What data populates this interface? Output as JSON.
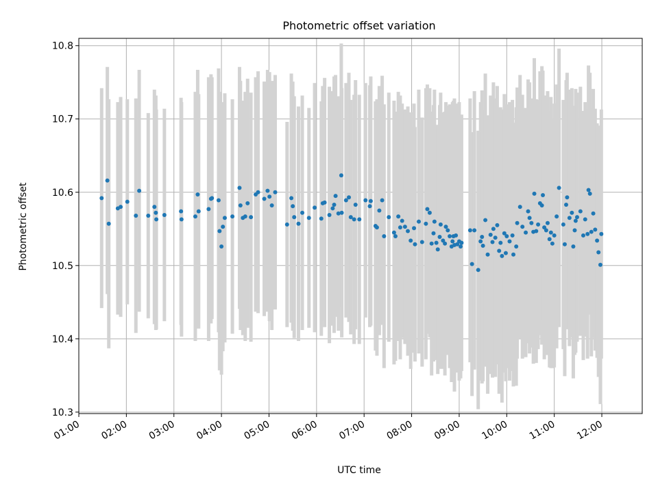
{
  "chart_data": {
    "type": "scatter",
    "title": "Photometric offset variation",
    "xlabel": "UTC time",
    "ylabel": "Photometric offset",
    "xlim": [
      1.0,
      12.85
    ],
    "ylim": [
      10.298,
      10.81
    ],
    "grid": true,
    "x_ticks": [
      {
        "value": 1,
        "label": "01:00"
      },
      {
        "value": 2,
        "label": "02:00"
      },
      {
        "value": 3,
        "label": "03:00"
      },
      {
        "value": 4,
        "label": "04:00"
      },
      {
        "value": 5,
        "label": "05:00"
      },
      {
        "value": 6,
        "label": "06:00"
      },
      {
        "value": 7,
        "label": "07:00"
      },
      {
        "value": 8,
        "label": "08:00"
      },
      {
        "value": 9,
        "label": "09:00"
      },
      {
        "value": 10,
        "label": "10:00"
      },
      {
        "value": 11,
        "label": "11:00"
      },
      {
        "value": 12,
        "label": "12:00"
      }
    ],
    "y_ticks": [
      {
        "value": 10.3,
        "label": "10.3"
      },
      {
        "value": 10.4,
        "label": "10.4"
      },
      {
        "value": 10.5,
        "label": "10.5"
      },
      {
        "value": 10.6,
        "label": "10.6"
      },
      {
        "value": 10.7,
        "label": "10.7"
      },
      {
        "value": 10.8,
        "label": "10.8"
      }
    ],
    "colors": {
      "point": "#1f77b4",
      "errorbar": "#d3d3d3",
      "grid": "#b0b0b0"
    },
    "points": [
      [
        1.48,
        10.592,
        0.15
      ],
      [
        1.6,
        10.616,
        0.155
      ],
      [
        1.63,
        10.557,
        0.17
      ],
      [
        1.82,
        10.578,
        0.145
      ],
      [
        1.88,
        10.58,
        0.15
      ],
      [
        2.02,
        10.587,
        0.14
      ],
      [
        2.2,
        10.568,
        0.16
      ],
      [
        2.27,
        10.602,
        0.165
      ],
      [
        2.46,
        10.568,
        0.14
      ],
      [
        2.59,
        10.58,
        0.16
      ],
      [
        2.62,
        10.572,
        0.16
      ],
      [
        2.63,
        10.563,
        0.15
      ],
      [
        2.8,
        10.569,
        0.145
      ],
      [
        3.15,
        10.574,
        0.155
      ],
      [
        3.16,
        10.563,
        0.16
      ],
      [
        3.45,
        10.567,
        0.17
      ],
      [
        3.5,
        10.597,
        0.17
      ],
      [
        3.52,
        10.574,
        0.16
      ],
      [
        3.73,
        10.577,
        0.18
      ],
      [
        3.78,
        10.591,
        0.17
      ],
      [
        3.8,
        10.592,
        0.165
      ],
      [
        3.94,
        10.589,
        0.18
      ],
      [
        3.96,
        10.547,
        0.19
      ],
      [
        4.0,
        10.526,
        0.175
      ],
      [
        4.03,
        10.553,
        0.17
      ],
      [
        4.07,
        10.565,
        0.17
      ],
      [
        4.23,
        10.567,
        0.16
      ],
      [
        4.38,
        10.606,
        0.165
      ],
      [
        4.4,
        10.582,
        0.17
      ],
      [
        4.45,
        10.565,
        0.16
      ],
      [
        4.5,
        10.567,
        0.17
      ],
      [
        4.55,
        10.585,
        0.17
      ],
      [
        4.62,
        10.566,
        0.17
      ],
      [
        4.72,
        10.597,
        0.16
      ],
      [
        4.77,
        10.6,
        0.165
      ],
      [
        4.9,
        10.591,
        0.16
      ],
      [
        4.97,
        10.602,
        0.165
      ],
      [
        5.01,
        10.594,
        0.17
      ],
      [
        5.06,
        10.582,
        0.17
      ],
      [
        5.13,
        10.6,
        0.16
      ],
      [
        5.38,
        10.556,
        0.14
      ],
      [
        5.47,
        10.592,
        0.17
      ],
      [
        5.5,
        10.581,
        0.17
      ],
      [
        5.53,
        10.566,
        0.165
      ],
      [
        5.62,
        10.557,
        0.16
      ],
      [
        5.7,
        10.572,
        0.16
      ],
      [
        5.84,
        10.565,
        0.15
      ],
      [
        5.96,
        10.579,
        0.17
      ],
      [
        6.1,
        10.564,
        0.16
      ],
      [
        6.13,
        10.585,
        0.16
      ],
      [
        6.17,
        10.586,
        0.17
      ],
      [
        6.27,
        10.569,
        0.175
      ],
      [
        6.34,
        10.578,
        0.16
      ],
      [
        6.37,
        10.583,
        0.175
      ],
      [
        6.4,
        10.595,
        0.165
      ],
      [
        6.46,
        10.571,
        0.16
      ],
      [
        6.52,
        10.623,
        0.18
      ],
      [
        6.53,
        10.572,
        0.17
      ],
      [
        6.62,
        10.589,
        0.16
      ],
      [
        6.68,
        10.593,
        0.17
      ],
      [
        6.72,
        10.566,
        0.16
      ],
      [
        6.79,
        10.563,
        0.17
      ],
      [
        6.82,
        10.583,
        0.17
      ],
      [
        6.9,
        10.563,
        0.17
      ],
      [
        7.03,
        10.589,
        0.16
      ],
      [
        7.12,
        10.581,
        0.165
      ],
      [
        7.14,
        10.588,
        0.17
      ],
      [
        7.24,
        10.554,
        0.17
      ],
      [
        7.27,
        10.552,
        0.175
      ],
      [
        7.32,
        10.575,
        0.17
      ],
      [
        7.38,
        10.589,
        0.17
      ],
      [
        7.42,
        10.54,
        0.18
      ],
      [
        7.52,
        10.566,
        0.17
      ],
      [
        7.63,
        10.545,
        0.18
      ],
      [
        7.66,
        10.54,
        0.17
      ],
      [
        7.72,
        10.567,
        0.17
      ],
      [
        7.76,
        10.552,
        0.18
      ],
      [
        7.8,
        10.561,
        0.16
      ],
      [
        7.86,
        10.553,
        0.16
      ],
      [
        7.92,
        10.547,
        0.17
      ],
      [
        7.98,
        10.534,
        0.175
      ],
      [
        8.05,
        10.551,
        0.17
      ],
      [
        8.07,
        10.529,
        0.16
      ],
      [
        8.15,
        10.56,
        0.18
      ],
      [
        8.22,
        10.532,
        0.17
      ],
      [
        8.3,
        10.557,
        0.185
      ],
      [
        8.33,
        10.577,
        0.17
      ],
      [
        8.38,
        10.572,
        0.17
      ],
      [
        8.42,
        10.53,
        0.18
      ],
      [
        8.46,
        10.544,
        0.175
      ],
      [
        8.48,
        10.56,
        0.18
      ],
      [
        8.52,
        10.531,
        0.16
      ],
      [
        8.55,
        10.522,
        0.17
      ],
      [
        8.59,
        10.539,
        0.18
      ],
      [
        8.61,
        10.556,
        0.18
      ],
      [
        8.66,
        10.534,
        0.175
      ],
      [
        8.7,
        10.53,
        0.18
      ],
      [
        8.72,
        10.553,
        0.17
      ],
      [
        8.76,
        10.548,
        0.17
      ],
      [
        8.8,
        10.54,
        0.18
      ],
      [
        8.84,
        10.526,
        0.185
      ],
      [
        8.86,
        10.533,
        0.19
      ],
      [
        8.88,
        10.54,
        0.185
      ],
      [
        8.9,
        10.528,
        0.2
      ],
      [
        8.93,
        10.541,
        0.18
      ],
      [
        8.96,
        10.529,
        0.175
      ],
      [
        9.0,
        10.533,
        0.19
      ],
      [
        9.03,
        10.526,
        0.18
      ],
      [
        9.05,
        10.531,
        0.175
      ],
      [
        9.23,
        10.548,
        0.18
      ],
      [
        9.27,
        10.502,
        0.18
      ],
      [
        9.32,
        10.548,
        0.19
      ],
      [
        9.4,
        10.494,
        0.19
      ],
      [
        9.45,
        10.533,
        0.19
      ],
      [
        9.48,
        10.539,
        0.2
      ],
      [
        9.5,
        10.527,
        0.185
      ],
      [
        9.55,
        10.562,
        0.2
      ],
      [
        9.6,
        10.515,
        0.19
      ],
      [
        9.66,
        10.542,
        0.19
      ],
      [
        9.7,
        10.532,
        0.185
      ],
      [
        9.72,
        10.55,
        0.2
      ],
      [
        9.76,
        10.538,
        0.19
      ],
      [
        9.8,
        10.555,
        0.19
      ],
      [
        9.84,
        10.52,
        0.195
      ],
      [
        9.87,
        10.531,
        0.185
      ],
      [
        9.9,
        10.513,
        0.2
      ],
      [
        9.95,
        10.544,
        0.19
      ],
      [
        9.98,
        10.517,
        0.175
      ],
      [
        10.0,
        10.54,
        0.18
      ],
      [
        10.06,
        10.533,
        0.19
      ],
      [
        10.12,
        10.541,
        0.185
      ],
      [
        10.14,
        10.515,
        0.18
      ],
      [
        10.2,
        10.526,
        0.19
      ],
      [
        10.22,
        10.558,
        0.185
      ],
      [
        10.28,
        10.58,
        0.18
      ],
      [
        10.33,
        10.553,
        0.18
      ],
      [
        10.4,
        10.545,
        0.17
      ],
      [
        10.45,
        10.574,
        0.18
      ],
      [
        10.48,
        10.565,
        0.185
      ],
      [
        10.52,
        10.558,
        0.17
      ],
      [
        10.56,
        10.546,
        0.18
      ],
      [
        10.58,
        10.598,
        0.185
      ],
      [
        10.62,
        10.547,
        0.18
      ],
      [
        10.66,
        10.556,
        0.17
      ],
      [
        10.7,
        10.585,
        0.18
      ],
      [
        10.74,
        10.582,
        0.19
      ],
      [
        10.76,
        10.596,
        0.17
      ],
      [
        10.79,
        10.552,
        0.18
      ],
      [
        10.83,
        10.548,
        0.17
      ],
      [
        10.86,
        10.558,
        0.18
      ],
      [
        10.9,
        10.536,
        0.175
      ],
      [
        10.93,
        10.545,
        0.185
      ],
      [
        10.96,
        10.53,
        0.17
      ],
      [
        11.0,
        10.541,
        0.18
      ],
      [
        11.05,
        10.567,
        0.18
      ],
      [
        11.1,
        10.606,
        0.19
      ],
      [
        11.19,
        10.556,
        0.17
      ],
      [
        11.22,
        10.529,
        0.18
      ],
      [
        11.25,
        10.583,
        0.17
      ],
      [
        11.27,
        10.593,
        0.17
      ],
      [
        11.32,
        10.565,
        0.175
      ],
      [
        11.37,
        10.572,
        0.17
      ],
      [
        11.4,
        10.526,
        0.18
      ],
      [
        11.43,
        10.548,
        0.17
      ],
      [
        11.45,
        10.561,
        0.18
      ],
      [
        11.48,
        10.566,
        0.17
      ],
      [
        11.55,
        10.574,
        0.17
      ],
      [
        11.61,
        10.541,
        0.17
      ],
      [
        11.65,
        10.563,
        0.16
      ],
      [
        11.7,
        10.543,
        0.17
      ],
      [
        11.72,
        10.603,
        0.17
      ],
      [
        11.75,
        10.598,
        0.165
      ],
      [
        11.78,
        10.546,
        0.17
      ],
      [
        11.82,
        10.571,
        0.17
      ],
      [
        11.86,
        10.549,
        0.165
      ],
      [
        11.9,
        10.534,
        0.16
      ],
      [
        11.93,
        10.518,
        0.17
      ],
      [
        11.97,
        10.501,
        0.19
      ],
      [
        11.99,
        10.543,
        0.17
      ]
    ]
  }
}
